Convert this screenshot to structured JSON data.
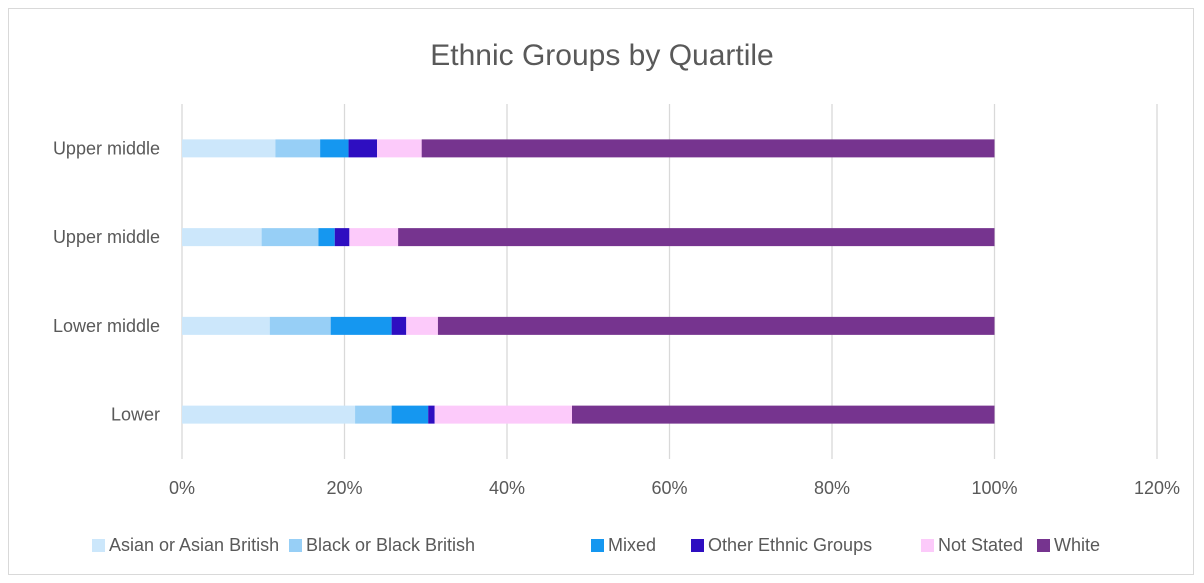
{
  "chart_data": {
    "type": "bar",
    "orientation": "horizontal",
    "stacked": true,
    "title": "Ethnic Groups by Quartile",
    "categories": [
      "Lower",
      "Lower middle",
      "Upper middle",
      "Upper middle"
    ],
    "series": [
      {
        "name": "Asian or Asian British",
        "color": "#cce7fb",
        "values": [
          21.3,
          10.8,
          9.8,
          11.5
        ]
      },
      {
        "name": "Black or Black British",
        "color": "#97cff6",
        "values": [
          4.5,
          7.5,
          7.0,
          5.5
        ]
      },
      {
        "name": "Mixed",
        "color": "#1597f0",
        "values": [
          4.5,
          7.5,
          2.0,
          3.5
        ]
      },
      {
        "name": "Other Ethnic Groups",
        "color": "#2e0ec1",
        "values": [
          0.8,
          1.8,
          1.8,
          3.5
        ]
      },
      {
        "name": "Not Stated",
        "color": "#fccafa",
        "values": [
          16.9,
          3.9,
          6.0,
          5.5
        ]
      },
      {
        "name": "White",
        "color": "#76348f",
        "values": [
          52.0,
          68.5,
          73.4,
          70.5
        ]
      }
    ],
    "xlim": [
      0,
      120
    ],
    "x_ticks": [
      0,
      20,
      40,
      60,
      80,
      100,
      120
    ],
    "x_tick_labels": [
      "0%",
      "20%",
      "40%",
      "60%",
      "80%",
      "100%",
      "120%"
    ],
    "grid": "vertical",
    "legend": "bottom",
    "xlabel": "",
    "ylabel": ""
  }
}
